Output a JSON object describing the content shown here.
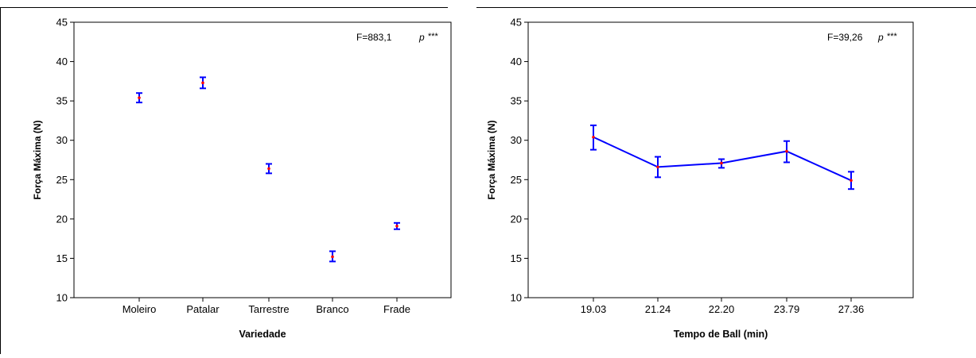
{
  "chart_data": [
    {
      "type": "line",
      "connected": false,
      "xlabel": "Variedade",
      "ylabel": "Força Máxima (N)",
      "ylim": [
        10,
        45
      ],
      "yticks": [
        10,
        15,
        20,
        25,
        30,
        35,
        40,
        45
      ],
      "categories": [
        "Moleiro",
        "Patalar",
        "Tarrestre",
        "Branco",
        "Frade"
      ],
      "series": [
        {
          "values": [
            35.4,
            37.3,
            26.4,
            15.2,
            19.1
          ],
          "error_low": [
            34.8,
            36.6,
            25.8,
            14.6,
            18.7
          ],
          "error_high": [
            36.0,
            38.0,
            27.0,
            15.9,
            19.5
          ]
        }
      ],
      "annotation": {
        "stat": "F=883,1",
        "p_label": "p",
        "stars": "***"
      },
      "grid": false,
      "colors": {
        "line": "#0000ff",
        "point": "#ff0000",
        "axis": "#000000"
      }
    },
    {
      "type": "line",
      "connected": true,
      "xlabel": "Tempo de Ball (min)",
      "ylabel": "Força Máxima (N)",
      "ylim": [
        10,
        45
      ],
      "yticks": [
        10,
        15,
        20,
        25,
        30,
        35,
        40,
        45
      ],
      "categories": [
        "19.03",
        "21.24",
        "22.20",
        "23.79",
        "27.36"
      ],
      "series": [
        {
          "values": [
            30.4,
            26.6,
            27.1,
            28.6,
            24.9
          ],
          "error_low": [
            28.8,
            25.3,
            26.5,
            27.2,
            23.8
          ],
          "error_high": [
            31.9,
            27.9,
            27.6,
            29.9,
            26.0
          ]
        }
      ],
      "annotation": {
        "stat": "F=39,26",
        "p_label": "p",
        "stars": "***"
      },
      "grid": false,
      "colors": {
        "line": "#0000ff",
        "point": "#ff0000",
        "axis": "#000000"
      }
    }
  ]
}
